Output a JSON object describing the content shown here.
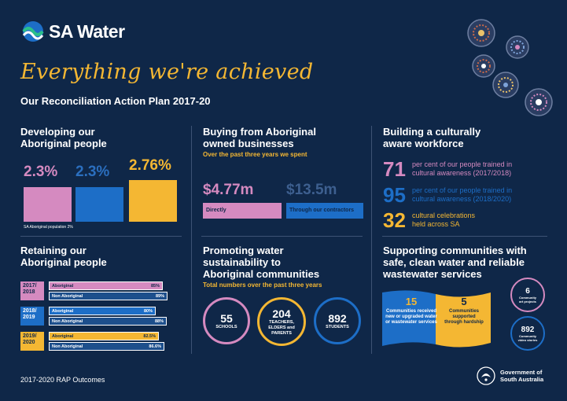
{
  "brand": {
    "name": "SA Water"
  },
  "header": {
    "headline": "Everything we're achieved",
    "subtitle": "Our Reconciliation Action Plan 2017-20"
  },
  "develop": {
    "title_line1": "Developing our",
    "title_line2": "Aboriginal people",
    "values": [
      "2.3%",
      "2.3%",
      "2.76%"
    ],
    "note": "SA Aboriginal population 2%"
  },
  "buying": {
    "title_line1": "Buying from Aboriginal",
    "title_line2": "owned businesses",
    "subtitle": "Over the past three years we spent",
    "direct_value": "$4.77m",
    "direct_label": "Directly",
    "contractor_value": "$13.5m",
    "contractor_label": "Through our contractors"
  },
  "workforce": {
    "title_line1": "Building a culturally",
    "title_line2": "aware workforce",
    "stats": [
      {
        "num": "71",
        "line1": "per cent of our people trained in",
        "line2": "cultural awareness (2017/2018)"
      },
      {
        "num": "95",
        "line1": "per cent of our people trained in",
        "line2": "cultural awareness (2018/2020)"
      },
      {
        "num": "32",
        "line1": "cultural celebrations",
        "line2": "held across SA"
      }
    ]
  },
  "retain": {
    "title_line1": "Retaining our",
    "title_line2": "Aboriginal people",
    "years": [
      {
        "label": "2017/ 2018",
        "aboriginal": "85%",
        "non_aboriginal": "89%",
        "ab_frac": 0.85,
        "non_frac": 0.89
      },
      {
        "label": "2018/ 2019",
        "aboriginal": "80%",
        "non_aboriginal": "88%",
        "ab_frac": 0.8,
        "non_frac": 0.88
      },
      {
        "label": "2019/ 2020",
        "aboriginal": "82.5%",
        "non_aboriginal": "86.6%",
        "ab_frac": 0.825,
        "non_frac": 0.866
      }
    ],
    "aboriginal_label": "Aboriginal",
    "non_aboriginal_label": "Non Aboriginal"
  },
  "promoting": {
    "title_line1": "Promoting water",
    "title_line2": "sustainability to",
    "title_line3": "Aboriginal communities",
    "subtitle": "Total numbers over the past three years",
    "circles": [
      {
        "num": "55",
        "label": "SCHOOLS"
      },
      {
        "num": "204",
        "label": "TEACHERS, ELDERS and PARENTS"
      },
      {
        "num": "892",
        "label": "STUDENTS"
      }
    ]
  },
  "supporting": {
    "title_line1": "Supporting communities with",
    "title_line2": "safe, clean water and reliable",
    "title_line3": "wastewater services",
    "box1_num": "15",
    "box1_label": "Communities received new or upgraded water or wastewater services",
    "box2_num": "5",
    "box2_label": "Communities supported through hardship",
    "circle1_num": "6",
    "circle1_label": "Community art projects",
    "circle2_num": "892",
    "circle2_label": "Community video stories"
  },
  "footer": {
    "text": "2017-2020 RAP Outcomes"
  },
  "gov": {
    "line1": "Government of",
    "line2": "South Australia"
  },
  "colors": {
    "navy": "#0f2748",
    "pink": "#d58ac0",
    "blue": "#1d6ec7",
    "yellow": "#f4b733"
  }
}
